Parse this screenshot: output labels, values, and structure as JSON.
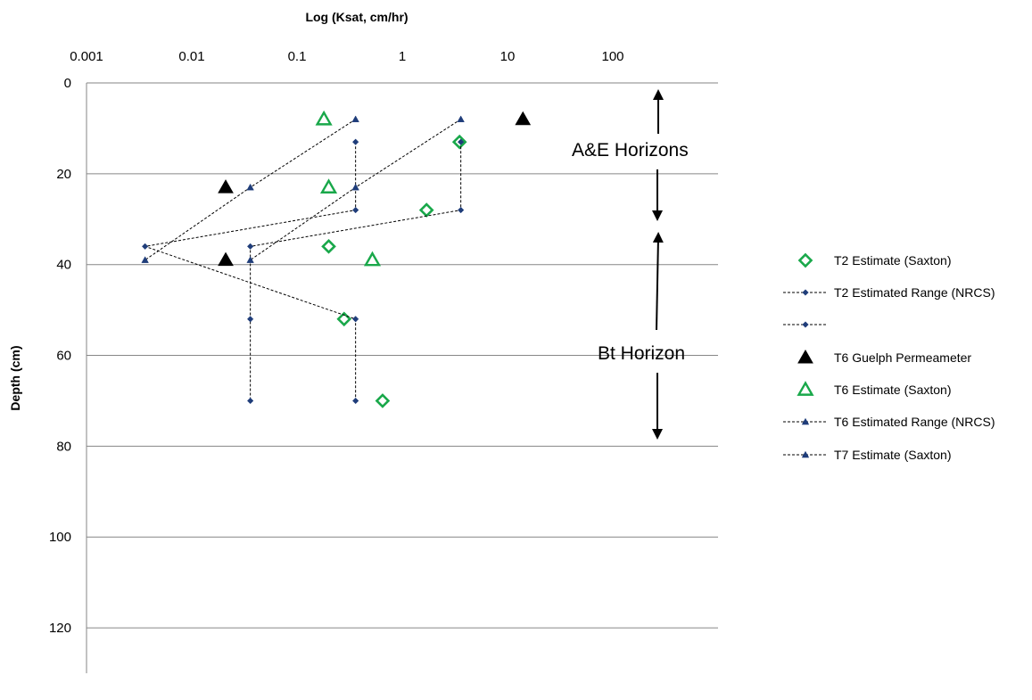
{
  "chart_data": {
    "type": "scatter",
    "title": "",
    "xlabel": "Log (Ksat,  cm/hr)",
    "ylabel": "Depth (cm)",
    "x_scale": "log",
    "x_ticks": [
      0.001,
      0.01,
      0.1,
      1,
      10,
      100
    ],
    "x_tick_labels": [
      "0.001",
      "0.01",
      "0.1",
      "1",
      "10",
      "100"
    ],
    "xlim": [
      0.001,
      1000
    ],
    "y_ticks": [
      0,
      20,
      40,
      60,
      80,
      100,
      120
    ],
    "y_tick_labels": [
      "0",
      "20",
      "40",
      "60",
      "80",
      "100",
      "120"
    ],
    "ylim": [
      0,
      130
    ],
    "y_reversed": true,
    "x_axis_position": "top",
    "grid": "horizontal",
    "legend_position": "right",
    "colors": {
      "green": "#19a84a",
      "navy": "#1f3d7a",
      "black": "#000000"
    },
    "annotations": [
      {
        "text": "A&E Horizons"
      },
      {
        "text": "Bt Horizon"
      }
    ],
    "series": [
      {
        "name": "T2 Estimate (Saxton)",
        "marker": "diamond-open",
        "color": "#19a84a",
        "line": false,
        "points": [
          [
            3.5,
            13
          ],
          [
            1.7,
            28
          ],
          [
            0.2,
            36
          ],
          [
            0.28,
            52
          ],
          [
            0.65,
            70
          ]
        ]
      },
      {
        "name": "T2 Estimated Range (NRCS)",
        "marker": "diamond-small",
        "color": "#1f3d7a",
        "line": true,
        "points": [
          [
            0.36,
            13
          ],
          [
            0.36,
            28
          ],
          [
            0.0036,
            36
          ],
          [
            0.36,
            52
          ],
          [
            0.36,
            70
          ]
        ]
      },
      {
        "name": "",
        "marker": "diamond-small",
        "color": "#1f3d7a",
        "line": true,
        "points": [
          [
            3.6,
            13
          ],
          [
            3.6,
            28
          ],
          [
            0.036,
            36
          ],
          [
            0.036,
            52
          ],
          [
            0.036,
            70
          ]
        ]
      },
      {
        "name": "T6 Guelph Permeameter",
        "marker": "triangle-filled",
        "color": "#000000",
        "line": false,
        "points": [
          [
            14,
            8
          ],
          [
            0.021,
            23
          ],
          [
            0.021,
            39
          ]
        ]
      },
      {
        "name": "T6 Estimate (Saxton)",
        "marker": "triangle-open",
        "color": "#19a84a",
        "line": false,
        "points": [
          [
            0.18,
            8
          ],
          [
            0.2,
            23
          ],
          [
            0.52,
            39
          ]
        ]
      },
      {
        "name": "T6 Estimated Range (NRCS)",
        "marker": "triangle-small",
        "color": "#1f3d7a",
        "line": true,
        "points": [
          [
            0.36,
            8
          ],
          [
            0.036,
            23
          ],
          [
            0.0036,
            39
          ]
        ]
      },
      {
        "name": "T7 Estimate (Saxton)",
        "marker": "triangle-small",
        "color": "#1f3d7a",
        "line": true,
        "points": [
          [
            3.6,
            8
          ],
          [
            0.36,
            23
          ],
          [
            0.036,
            39
          ]
        ]
      }
    ]
  }
}
